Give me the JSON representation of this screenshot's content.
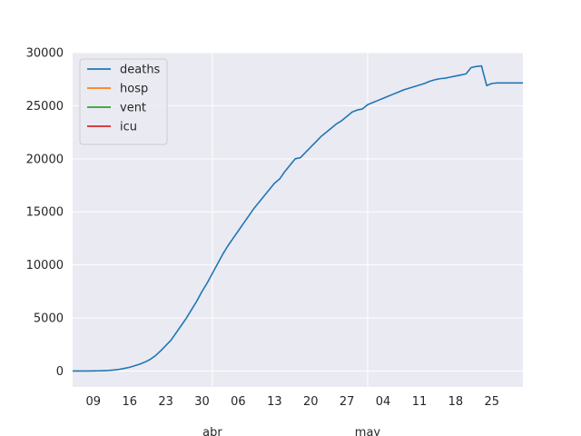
{
  "chart_data": {
    "type": "line",
    "ylim": [
      -1500,
      30000
    ],
    "y_ticks": [
      0,
      5000,
      10000,
      15000,
      20000,
      25000,
      30000
    ],
    "x_range_days": [
      0,
      87
    ],
    "x_ticks": [
      {
        "label": "09",
        "day": 4
      },
      {
        "label": "16",
        "day": 11
      },
      {
        "label": "23",
        "day": 18
      },
      {
        "label": "30",
        "day": 25
      },
      {
        "label": "06",
        "day": 32
      },
      {
        "label": "13",
        "day": 39
      },
      {
        "label": "20",
        "day": 46
      },
      {
        "label": "27",
        "day": 53
      },
      {
        "label": "04",
        "day": 60
      },
      {
        "label": "11",
        "day": 67
      },
      {
        "label": "18",
        "day": 74
      },
      {
        "label": "25",
        "day": 81
      }
    ],
    "month_labels": [
      {
        "label": "abr",
        "day": 27
      },
      {
        "label": "may",
        "day": 57
      }
    ],
    "grid": true,
    "legend_position": "top-left",
    "colors": {
      "background": "#eaeaf2",
      "grid": "#ffffff",
      "deaths": "#1f77b4",
      "hosp": "#ff7f0e",
      "vent": "#2ca02c",
      "icu": "#d62728"
    },
    "series": [
      {
        "name": "deaths",
        "color": "#1f77b4",
        "points": [
          [
            0,
            0
          ],
          [
            1,
            0
          ],
          [
            2,
            0
          ],
          [
            3,
            5
          ],
          [
            4,
            10
          ],
          [
            5,
            20
          ],
          [
            6,
            35
          ],
          [
            7,
            55
          ],
          [
            8,
            100
          ],
          [
            9,
            160
          ],
          [
            10,
            250
          ],
          [
            11,
            350
          ],
          [
            12,
            500
          ],
          [
            13,
            650
          ],
          [
            14,
            850
          ],
          [
            15,
            1100
          ],
          [
            16,
            1450
          ],
          [
            17,
            1900
          ],
          [
            18,
            2400
          ],
          [
            19,
            2900
          ],
          [
            20,
            3600
          ],
          [
            21,
            4300
          ],
          [
            22,
            5000
          ],
          [
            23,
            5800
          ],
          [
            24,
            6600
          ],
          [
            25,
            7500
          ],
          [
            26,
            8300
          ],
          [
            27,
            9200
          ],
          [
            28,
            10100
          ],
          [
            29,
            11000
          ],
          [
            30,
            11800
          ],
          [
            31,
            12500
          ],
          [
            32,
            13200
          ],
          [
            33,
            13900
          ],
          [
            34,
            14600
          ],
          [
            35,
            15300
          ],
          [
            36,
            15900
          ],
          [
            37,
            16500
          ],
          [
            38,
            17100
          ],
          [
            39,
            17700
          ],
          [
            40,
            18100
          ],
          [
            41,
            18800
          ],
          [
            42,
            19400
          ],
          [
            43,
            20000
          ],
          [
            44,
            20100
          ],
          [
            45,
            20600
          ],
          [
            46,
            21100
          ],
          [
            47,
            21600
          ],
          [
            48,
            22100
          ],
          [
            49,
            22500
          ],
          [
            50,
            22900
          ],
          [
            51,
            23300
          ],
          [
            52,
            23600
          ],
          [
            53,
            24000
          ],
          [
            54,
            24400
          ],
          [
            55,
            24600
          ],
          [
            56,
            24700
          ],
          [
            57,
            25100
          ],
          [
            58,
            25300
          ],
          [
            59,
            25500
          ],
          [
            60,
            25700
          ],
          [
            61,
            25900
          ],
          [
            62,
            26100
          ],
          [
            63,
            26300
          ],
          [
            64,
            26500
          ],
          [
            65,
            26650
          ],
          [
            66,
            26800
          ],
          [
            67,
            26950
          ],
          [
            68,
            27100
          ],
          [
            69,
            27300
          ],
          [
            70,
            27450
          ],
          [
            71,
            27550
          ],
          [
            72,
            27600
          ],
          [
            73,
            27700
          ],
          [
            74,
            27800
          ],
          [
            75,
            27900
          ],
          [
            76,
            28000
          ],
          [
            77,
            28600
          ],
          [
            78,
            28700
          ],
          [
            79,
            28750
          ],
          [
            80,
            26900
          ],
          [
            81,
            27100
          ],
          [
            82,
            27150
          ],
          [
            83,
            27150
          ],
          [
            84,
            27150
          ],
          [
            85,
            27150
          ],
          [
            86,
            27150
          ],
          [
            87,
            27150
          ]
        ]
      },
      {
        "name": "hosp",
        "color": "#ff7f0e",
        "points": []
      },
      {
        "name": "vent",
        "color": "#2ca02c",
        "points": []
      },
      {
        "name": "icu",
        "color": "#d62728",
        "points": []
      }
    ]
  }
}
